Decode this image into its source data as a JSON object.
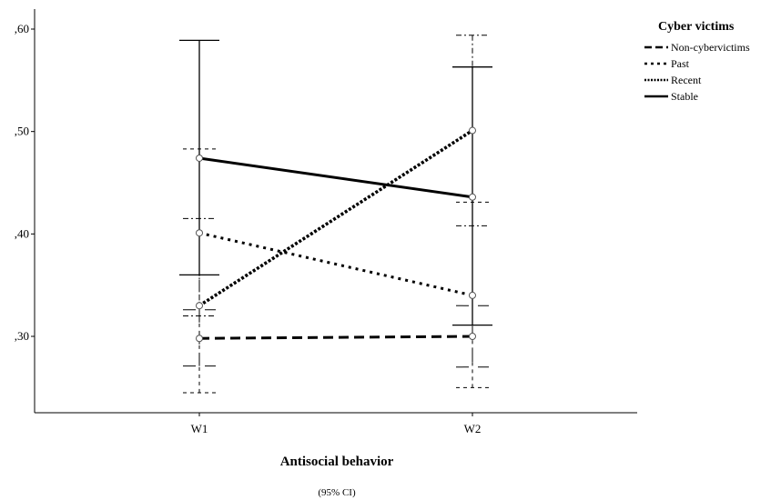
{
  "chart_data": {
    "type": "line",
    "title": "",
    "xlabel": "Antisocial behavior",
    "xlabel_sub": "(95% CI)",
    "ylabel": "",
    "categories": [
      "W1",
      "W2"
    ],
    "ylim": [
      0.22,
      0.62
    ],
    "yticks": [
      0.3,
      0.4,
      0.5,
      0.6
    ],
    "ytick_labels": [
      ",30",
      ",40",
      ",50",
      ",60"
    ],
    "grid": false,
    "legend_position": "top-right",
    "legend_title": "Cyber victims",
    "series": [
      {
        "name": "Non-cybervictims",
        "style": "dashed",
        "values": [
          0.298,
          0.3
        ],
        "ci_low": [
          0.271,
          0.27
        ],
        "ci_high": [
          0.326,
          0.33
        ]
      },
      {
        "name": "Past",
        "style": "dotted",
        "values": [
          0.401,
          0.34
        ],
        "ci_low": [
          0.245,
          0.25
        ],
        "ci_high": [
          0.483,
          0.431
        ]
      },
      {
        "name": "Recent",
        "style": "densely-dotted",
        "values": [
          0.33,
          0.501
        ],
        "ci_low": [
          0.32,
          0.408
        ],
        "ci_high": [
          0.415,
          0.594
        ]
      },
      {
        "name": "Stable",
        "style": "solid",
        "values": [
          0.474,
          0.436
        ],
        "ci_low": [
          0.36,
          0.311
        ],
        "ci_high": [
          0.589,
          0.563
        ]
      }
    ]
  }
}
